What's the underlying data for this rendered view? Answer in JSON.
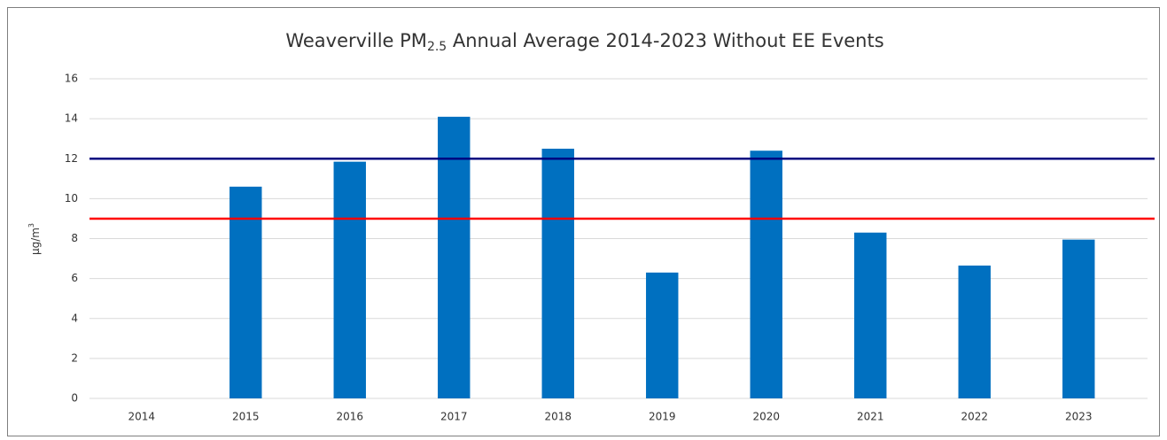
{
  "chart_data": {
    "type": "bar",
    "title": "Weaverville PM",
    "title_subscript": "2.5",
    "title_rest": " Annual Average 2014-2023 Without EE Events",
    "y_label": "µg/m",
    "y_label_superscript": "3",
    "categories": [
      "2014",
      "2015",
      "2016",
      "2017",
      "2018",
      "2019",
      "2020",
      "2021",
      "2022",
      "2023"
    ],
    "values": [
      null,
      10.6,
      11.85,
      14.1,
      12.5,
      6.3,
      12.4,
      8.3,
      6.65,
      7.95
    ],
    "color": "#0070c0",
    "ylim": [
      0,
      16
    ],
    "yticks": [
      0,
      2,
      4,
      6,
      8,
      10,
      12,
      14,
      16
    ],
    "grid": true,
    "reference_lines": [
      {
        "value": 12,
        "color": "#00007f"
      },
      {
        "value": 9,
        "color": "#ff0000"
      }
    ]
  }
}
